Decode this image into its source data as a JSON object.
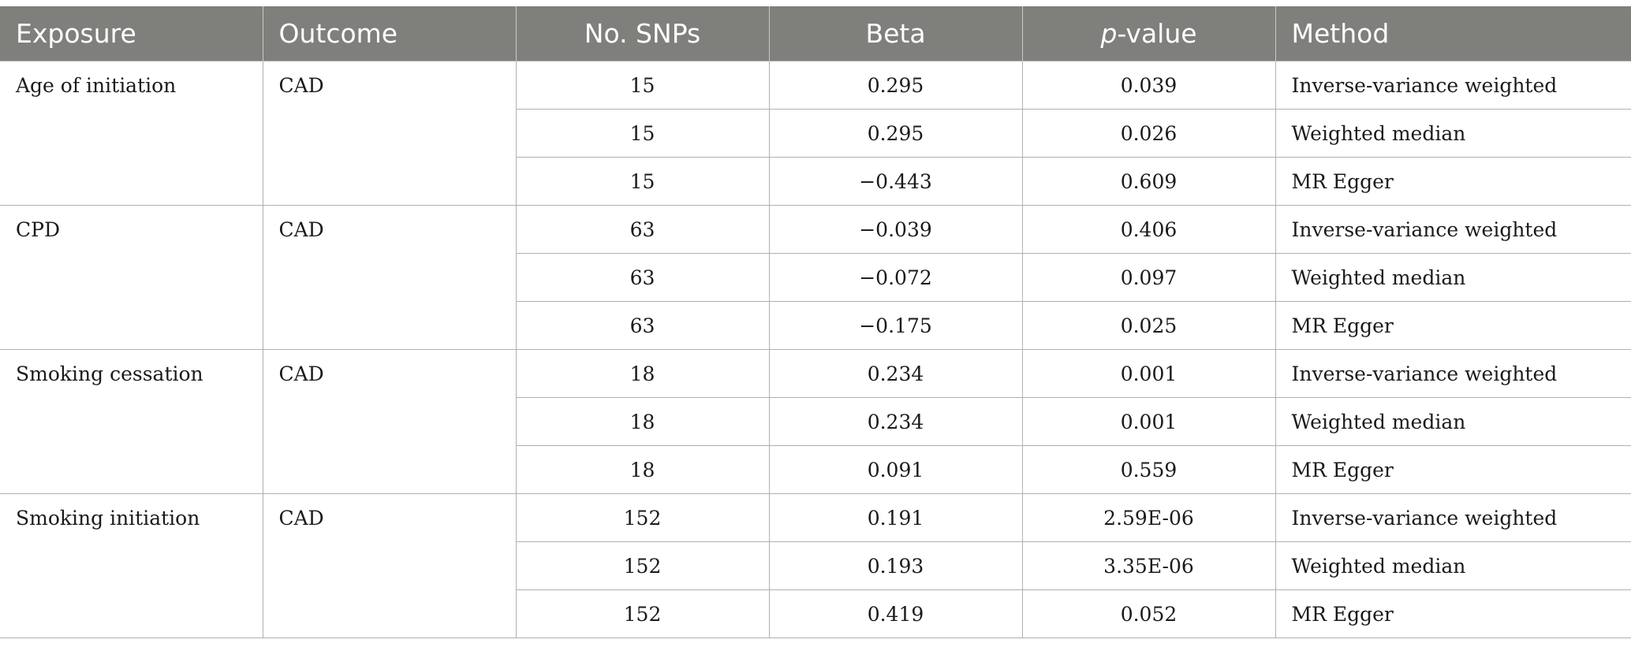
{
  "headers": {
    "exposure": "Exposure",
    "outcome": "Outcome",
    "snps": "No. SNPs",
    "beta": "Beta",
    "pvalue_italic": "p",
    "pvalue_rest": "-value",
    "method": "Method"
  },
  "groups": [
    {
      "exposure": "Age of initiation",
      "outcome": "CAD",
      "rows": [
        {
          "snps": "15",
          "beta": "0.295",
          "pvalue": "0.039",
          "method": "Inverse-variance weighted"
        },
        {
          "snps": "15",
          "beta": "0.295",
          "pvalue": "0.026",
          "method": "Weighted median"
        },
        {
          "snps": "15",
          "beta": "−0.443",
          "pvalue": "0.609",
          "method": "MR Egger"
        }
      ]
    },
    {
      "exposure": "CPD",
      "outcome": "CAD",
      "rows": [
        {
          "snps": "63",
          "beta": "−0.039",
          "pvalue": "0.406",
          "method": "Inverse-variance weighted"
        },
        {
          "snps": "63",
          "beta": "−0.072",
          "pvalue": "0.097",
          "method": "Weighted median"
        },
        {
          "snps": "63",
          "beta": "−0.175",
          "pvalue": "0.025",
          "method": "MR Egger"
        }
      ]
    },
    {
      "exposure": "Smoking cessation",
      "outcome": "CAD",
      "rows": [
        {
          "snps": "18",
          "beta": "0.234",
          "pvalue": "0.001",
          "method": "Inverse-variance weighted"
        },
        {
          "snps": "18",
          "beta": "0.234",
          "pvalue": "0.001",
          "method": "Weighted median"
        },
        {
          "snps": "18",
          "beta": "0.091",
          "pvalue": "0.559",
          "method": "MR Egger"
        }
      ]
    },
    {
      "exposure": "Smoking initiation",
      "outcome": "CAD",
      "rows": [
        {
          "snps": "152",
          "beta": "0.191",
          "pvalue": "2.59E-06",
          "method": "Inverse-variance weighted"
        },
        {
          "snps": "152",
          "beta": "0.193",
          "pvalue": "3.35E-06",
          "method": "Weighted median"
        },
        {
          "snps": "152",
          "beta": "0.419",
          "pvalue": "0.052",
          "method": "MR Egger"
        }
      ]
    }
  ]
}
